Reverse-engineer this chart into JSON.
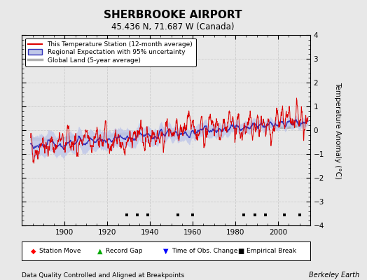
{
  "title": "SHERBROOKE AIRPORT",
  "subtitle": "45.436 N, 71.687 W (Canada)",
  "ylabel": "Temperature Anomaly (°C)",
  "xlabel_note": "Data Quality Controlled and Aligned at Breakpoints",
  "credit": "Berkeley Earth",
  "ylim": [
    -4,
    4
  ],
  "xlim": [
    1880,
    2015
  ],
  "yticks": [
    -4,
    -3,
    -2,
    -1,
    0,
    1,
    2,
    3,
    4
  ],
  "xticks": [
    1900,
    1920,
    1940,
    1960,
    1980,
    2000
  ],
  "bg_color": "#e8e8e8",
  "plot_bg_color": "#e8e8e8",
  "station_color": "#dd0000",
  "regional_color": "#3333bb",
  "regional_fill_color": "#c0c8e8",
  "global_color": "#b0b0b0",
  "legend_items": [
    "This Temperature Station (12-month average)",
    "Regional Expectation with 95% uncertainty",
    "Global Land (5-year average)"
  ],
  "marker_year_empirical": [
    1929,
    1934,
    1939,
    1953,
    1960,
    1984,
    1989,
    1994,
    2003,
    2010
  ],
  "seed": 42
}
